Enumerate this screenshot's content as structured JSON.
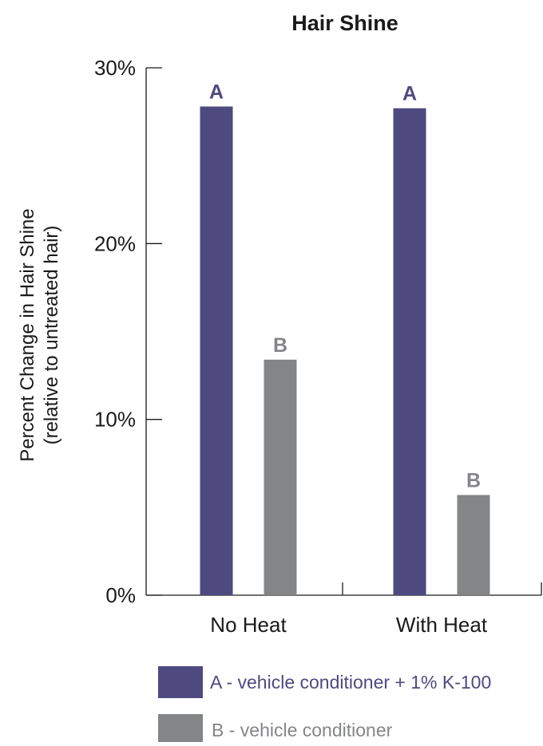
{
  "chart_data": {
    "type": "bar",
    "title": "Hair Shine",
    "ylabel_line1": "Percent Change in Hair Shine",
    "ylabel_line2": "(relative to untreated hair)",
    "xlabel": "",
    "categories": [
      "No Heat",
      "With Heat"
    ],
    "ylim": [
      0,
      30
    ],
    "yticks": [
      0,
      10,
      20,
      30
    ],
    "ytick_labels": [
      "0%",
      "10%",
      "20%",
      "30%"
    ],
    "grid": false,
    "legend_position": "bottom",
    "series": [
      {
        "name": "A - vehicle conditioner + 1% K-100",
        "key": "A",
        "color": "#4e4a80",
        "values": [
          27.8,
          27.7
        ]
      },
      {
        "name": "B - vehicle conditioner",
        "key": "B",
        "color": "#848587",
        "values": [
          13.4,
          5.7
        ]
      }
    ]
  }
}
